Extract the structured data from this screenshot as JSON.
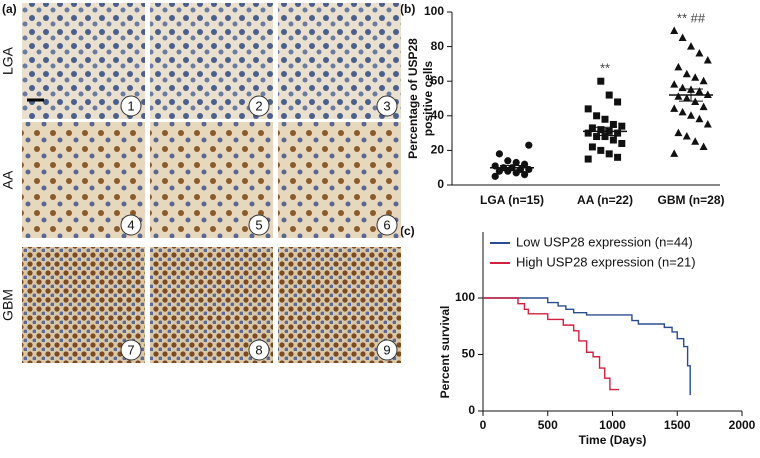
{
  "figure": {
    "panel_labels": [
      "(a)",
      "(b)",
      "(c)"
    ],
    "row_labels": [
      "LGA",
      "AA",
      "GBM"
    ],
    "tile_numbers": [
      "1",
      "2",
      "3",
      "4",
      "5",
      "6",
      "7",
      "8",
      "9"
    ]
  },
  "chart_data": [
    {
      "type": "dotplot",
      "ylabel": [
        "Percentage of USP28",
        "positive cells"
      ],
      "categories": [
        "LGA (n=15)",
        "AA (n=22)",
        "GBM (n=28)"
      ],
      "markers": [
        "circle",
        "square",
        "triangle"
      ],
      "color": "#111111",
      "groups": [
        [
          5,
          6,
          7,
          8,
          8,
          9,
          9,
          10,
          10,
          11,
          12,
          13,
          14,
          18,
          23
        ],
        [
          15,
          16,
          18,
          20,
          22,
          24,
          26,
          28,
          28,
          30,
          30,
          31,
          32,
          33,
          34,
          35,
          38,
          40,
          44,
          48,
          52,
          60
        ],
        [
          18,
          22,
          25,
          28,
          30,
          35,
          38,
          40,
          42,
          44,
          45,
          48,
          50,
          51,
          52,
          54,
          55,
          56,
          58,
          60,
          62,
          64,
          68,
          72,
          76,
          80,
          85,
          89
        ]
      ],
      "means": [
        10,
        31,
        52
      ],
      "sem": [
        1.3,
        2.4,
        3.5
      ],
      "annotations": [
        {
          "text": "**",
          "category": 1
        },
        {
          "text": "** ##",
          "category": 2
        }
      ],
      "ylim": [
        0,
        100
      ],
      "yticks": [
        0,
        20,
        40,
        60,
        80,
        100
      ]
    },
    {
      "type": "step",
      "xlabel": "Time (Days)",
      "ylabel": "Percent survival",
      "series": [
        {
          "name": "Low USP28 expression (n=44)",
          "color": "#2a4d8f",
          "x": [
            0,
            450,
            500,
            580,
            640,
            700,
            800,
            1150,
            1200,
            1400,
            1460,
            1500,
            1550,
            1580,
            1600
          ],
          "values": [
            100,
            100,
            96,
            93,
            90,
            87,
            85,
            80,
            77,
            74,
            70,
            64,
            57,
            40,
            14
          ]
        },
        {
          "name": "High USP28 expression (n=21)",
          "color": "#d0213f",
          "x": [
            0,
            270,
            320,
            350,
            500,
            620,
            700,
            740,
            800,
            850,
            900,
            940,
            980,
            1050
          ],
          "values": [
            100,
            95,
            90,
            86,
            81,
            76,
            71,
            62,
            52,
            48,
            38,
            29,
            19,
            19
          ]
        }
      ],
      "xlim": [
        0,
        2000
      ],
      "xticks": [
        0,
        500,
        1000,
        1500,
        2000
      ],
      "ylim": [
        0,
        100
      ],
      "yticks": [
        0,
        50,
        100
      ]
    }
  ]
}
